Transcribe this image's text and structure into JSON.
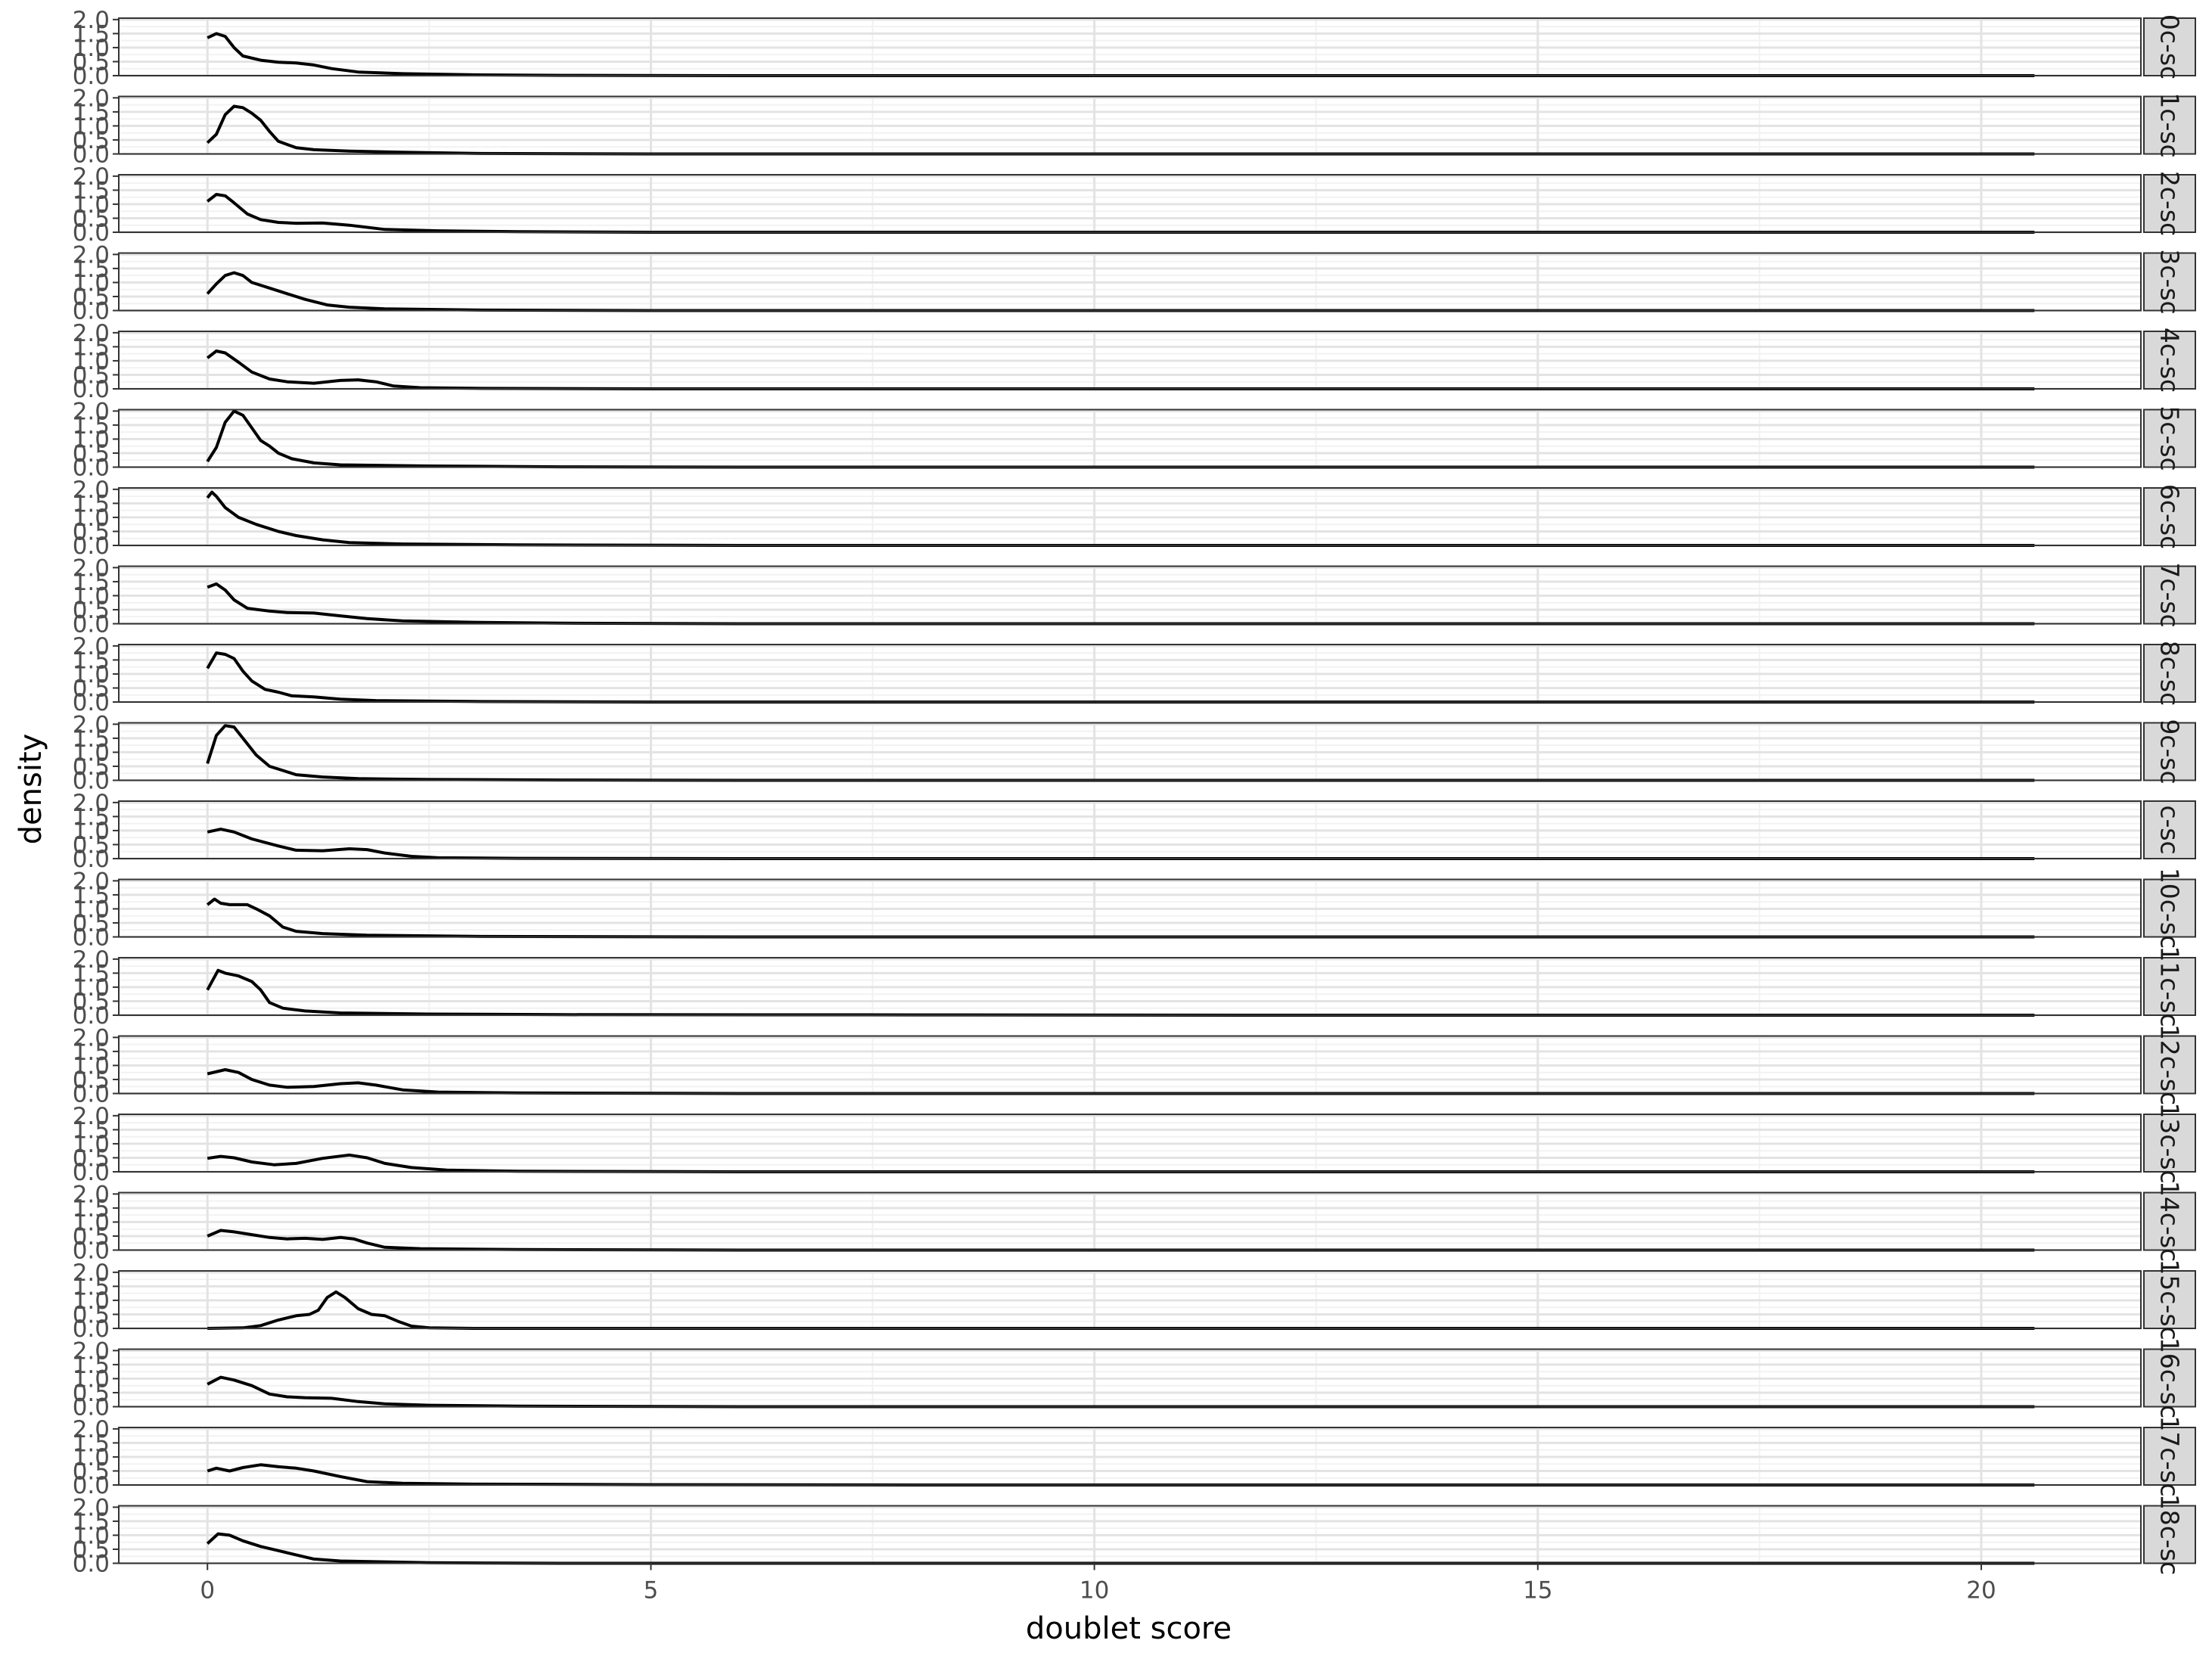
{
  "chart_data": {
    "type": "line",
    "facet": "rows",
    "xlabel": "doublet score",
    "ylabel": "density",
    "xlim": [
      -1,
      21.8
    ],
    "ylim": [
      0,
      2.05
    ],
    "x_ticks": [
      0,
      5,
      10,
      15,
      20
    ],
    "x_tick_labels": [
      "0",
      "5",
      "10",
      "15",
      "20"
    ],
    "y_ticks": [
      0,
      0.5,
      1,
      1.5,
      2
    ],
    "y_tick_labels": [
      "0.0",
      "0.5",
      "1.0",
      "1.5",
      "2.0"
    ],
    "grid": true,
    "legend": "none",
    "line_color": "#000000",
    "strip_color": "#d9d9d9",
    "x_end": 20.6,
    "series": [
      {
        "strip": "0c-sc",
        "points": [
          [
            0,
            1.35
          ],
          [
            0.1,
            1.5
          ],
          [
            0.2,
            1.4
          ],
          [
            0.3,
            1.0
          ],
          [
            0.4,
            0.7
          ],
          [
            0.6,
            0.55
          ],
          [
            0.8,
            0.48
          ],
          [
            1.0,
            0.45
          ],
          [
            1.2,
            0.38
          ],
          [
            1.4,
            0.25
          ],
          [
            1.7,
            0.13
          ],
          [
            2.2,
            0.07
          ],
          [
            3,
            0.03
          ],
          [
            4,
            0.01
          ],
          [
            6,
            0
          ]
        ]
      },
      {
        "strip": "1c-sc",
        "points": [
          [
            0,
            0.4
          ],
          [
            0.1,
            0.7
          ],
          [
            0.2,
            1.4
          ],
          [
            0.3,
            1.7
          ],
          [
            0.4,
            1.65
          ],
          [
            0.5,
            1.45
          ],
          [
            0.6,
            1.2
          ],
          [
            0.7,
            0.8
          ],
          [
            0.8,
            0.45
          ],
          [
            1.0,
            0.22
          ],
          [
            1.2,
            0.15
          ],
          [
            1.6,
            0.1
          ],
          [
            2.2,
            0.06
          ],
          [
            3,
            0.02
          ],
          [
            5,
            0
          ]
        ]
      },
      {
        "strip": "2c-sc",
        "points": [
          [
            0,
            1.1
          ],
          [
            0.1,
            1.35
          ],
          [
            0.2,
            1.3
          ],
          [
            0.3,
            1.05
          ],
          [
            0.45,
            0.65
          ],
          [
            0.6,
            0.45
          ],
          [
            0.8,
            0.35
          ],
          [
            1.0,
            0.32
          ],
          [
            1.3,
            0.33
          ],
          [
            1.6,
            0.25
          ],
          [
            2.0,
            0.1
          ],
          [
            2.6,
            0.05
          ],
          [
            3.5,
            0.02
          ],
          [
            5,
            0
          ]
        ]
      },
      {
        "strip": "3c-sc",
        "points": [
          [
            0,
            0.6
          ],
          [
            0.1,
            0.95
          ],
          [
            0.2,
            1.25
          ],
          [
            0.3,
            1.35
          ],
          [
            0.4,
            1.25
          ],
          [
            0.5,
            1.0
          ],
          [
            0.7,
            0.8
          ],
          [
            0.9,
            0.6
          ],
          [
            1.1,
            0.4
          ],
          [
            1.35,
            0.2
          ],
          [
            1.6,
            0.12
          ],
          [
            2.0,
            0.06
          ],
          [
            3,
            0.02
          ],
          [
            5,
            0
          ]
        ]
      },
      {
        "strip": "4c-sc",
        "points": [
          [
            0,
            1.1
          ],
          [
            0.1,
            1.35
          ],
          [
            0.2,
            1.28
          ],
          [
            0.35,
            0.95
          ],
          [
            0.5,
            0.6
          ],
          [
            0.7,
            0.35
          ],
          [
            0.9,
            0.25
          ],
          [
            1.2,
            0.2
          ],
          [
            1.5,
            0.3
          ],
          [
            1.7,
            0.32
          ],
          [
            1.9,
            0.25
          ],
          [
            2.1,
            0.1
          ],
          [
            2.4,
            0.04
          ],
          [
            3,
            0.02
          ],
          [
            5,
            0
          ]
        ]
      },
      {
        "strip": "5c-sc",
        "points": [
          [
            0,
            0.2
          ],
          [
            0.1,
            0.7
          ],
          [
            0.2,
            1.6
          ],
          [
            0.3,
            2.0
          ],
          [
            0.4,
            1.85
          ],
          [
            0.5,
            1.4
          ],
          [
            0.6,
            0.95
          ],
          [
            0.7,
            0.75
          ],
          [
            0.8,
            0.5
          ],
          [
            0.95,
            0.3
          ],
          [
            1.2,
            0.15
          ],
          [
            1.5,
            0.08
          ],
          [
            2.5,
            0.04
          ],
          [
            4,
            0.01
          ],
          [
            6,
            0
          ]
        ]
      },
      {
        "strip": "6c-sc",
        "points": [
          [
            0,
            1.7
          ],
          [
            0.05,
            1.9
          ],
          [
            0.1,
            1.75
          ],
          [
            0.2,
            1.35
          ],
          [
            0.35,
            1.0
          ],
          [
            0.55,
            0.75
          ],
          [
            0.8,
            0.5
          ],
          [
            1.0,
            0.35
          ],
          [
            1.3,
            0.2
          ],
          [
            1.6,
            0.1
          ],
          [
            2.2,
            0.05
          ],
          [
            3.5,
            0.02
          ],
          [
            6,
            0
          ]
        ]
      },
      {
        "strip": "7c-sc",
        "points": [
          [
            0,
            1.3
          ],
          [
            0.1,
            1.42
          ],
          [
            0.2,
            1.2
          ],
          [
            0.3,
            0.85
          ],
          [
            0.45,
            0.55
          ],
          [
            0.7,
            0.45
          ],
          [
            0.9,
            0.4
          ],
          [
            1.2,
            0.38
          ],
          [
            1.5,
            0.28
          ],
          [
            1.8,
            0.18
          ],
          [
            2.2,
            0.1
          ],
          [
            3,
            0.05
          ],
          [
            4,
            0.02
          ],
          [
            6,
            0
          ]
        ]
      },
      {
        "strip": "8c-sc",
        "points": [
          [
            0,
            1.2
          ],
          [
            0.1,
            1.75
          ],
          [
            0.2,
            1.7
          ],
          [
            0.3,
            1.55
          ],
          [
            0.4,
            1.1
          ],
          [
            0.5,
            0.75
          ],
          [
            0.65,
            0.45
          ],
          [
            0.8,
            0.35
          ],
          [
            0.95,
            0.22
          ],
          [
            1.2,
            0.18
          ],
          [
            1.5,
            0.1
          ],
          [
            1.9,
            0.05
          ],
          [
            3,
            0.02
          ],
          [
            5,
            0
          ]
        ]
      },
      {
        "strip": "9c-sc",
        "points": [
          [
            0,
            0.6
          ],
          [
            0.1,
            1.6
          ],
          [
            0.2,
            1.95
          ],
          [
            0.3,
            1.9
          ],
          [
            0.4,
            1.5
          ],
          [
            0.55,
            0.9
          ],
          [
            0.7,
            0.5
          ],
          [
            0.85,
            0.35
          ],
          [
            1.0,
            0.2
          ],
          [
            1.3,
            0.12
          ],
          [
            1.7,
            0.06
          ],
          [
            2.5,
            0.03
          ],
          [
            4,
            0.01
          ],
          [
            6,
            0
          ]
        ]
      },
      {
        "strip": "c-sc",
        "points": [
          [
            0,
            0.95
          ],
          [
            0.15,
            1.05
          ],
          [
            0.3,
            0.95
          ],
          [
            0.5,
            0.7
          ],
          [
            0.8,
            0.45
          ],
          [
            1.0,
            0.3
          ],
          [
            1.3,
            0.28
          ],
          [
            1.6,
            0.35
          ],
          [
            1.8,
            0.32
          ],
          [
            2.0,
            0.2
          ],
          [
            2.3,
            0.08
          ],
          [
            2.6,
            0.03
          ],
          [
            3.5,
            0.01
          ],
          [
            6,
            0
          ]
        ]
      },
      {
        "strip": "10c-sc",
        "points": [
          [
            0,
            1.15
          ],
          [
            0.08,
            1.35
          ],
          [
            0.15,
            1.2
          ],
          [
            0.25,
            1.15
          ],
          [
            0.45,
            1.15
          ],
          [
            0.55,
            1.0
          ],
          [
            0.7,
            0.75
          ],
          [
            0.85,
            0.35
          ],
          [
            1.0,
            0.2
          ],
          [
            1.3,
            0.12
          ],
          [
            1.8,
            0.06
          ],
          [
            3,
            0.02
          ],
          [
            6,
            0
          ]
        ]
      },
      {
        "strip": "11c-sc",
        "points": [
          [
            0,
            0.9
          ],
          [
            0.12,
            1.6
          ],
          [
            0.2,
            1.5
          ],
          [
            0.35,
            1.4
          ],
          [
            0.5,
            1.2
          ],
          [
            0.6,
            0.9
          ],
          [
            0.7,
            0.45
          ],
          [
            0.85,
            0.25
          ],
          [
            1.1,
            0.15
          ],
          [
            1.5,
            0.08
          ],
          [
            2.5,
            0.04
          ],
          [
            4,
            0.02
          ],
          [
            8,
            0.01
          ],
          [
            12,
            0
          ]
        ]
      },
      {
        "strip": "12c-sc",
        "points": [
          [
            0,
            0.7
          ],
          [
            0.2,
            0.85
          ],
          [
            0.35,
            0.75
          ],
          [
            0.5,
            0.5
          ],
          [
            0.7,
            0.3
          ],
          [
            0.9,
            0.22
          ],
          [
            1.2,
            0.25
          ],
          [
            1.5,
            0.35
          ],
          [
            1.7,
            0.38
          ],
          [
            1.9,
            0.3
          ],
          [
            2.2,
            0.13
          ],
          [
            2.6,
            0.05
          ],
          [
            3.5,
            0.02
          ],
          [
            6,
            0
          ]
        ]
      },
      {
        "strip": "13c-sc",
        "points": [
          [
            0,
            0.48
          ],
          [
            0.15,
            0.55
          ],
          [
            0.3,
            0.5
          ],
          [
            0.5,
            0.35
          ],
          [
            0.75,
            0.25
          ],
          [
            1.0,
            0.3
          ],
          [
            1.3,
            0.48
          ],
          [
            1.6,
            0.6
          ],
          [
            1.8,
            0.5
          ],
          [
            2.0,
            0.3
          ],
          [
            2.3,
            0.15
          ],
          [
            2.7,
            0.06
          ],
          [
            3.5,
            0.02
          ],
          [
            6,
            0
          ]
        ]
      },
      {
        "strip": "14c-sc",
        "points": [
          [
            0,
            0.5
          ],
          [
            0.15,
            0.7
          ],
          [
            0.3,
            0.65
          ],
          [
            0.5,
            0.55
          ],
          [
            0.7,
            0.45
          ],
          [
            0.9,
            0.4
          ],
          [
            1.1,
            0.42
          ],
          [
            1.3,
            0.38
          ],
          [
            1.5,
            0.45
          ],
          [
            1.65,
            0.4
          ],
          [
            1.8,
            0.25
          ],
          [
            2.0,
            0.1
          ],
          [
            2.4,
            0.05
          ],
          [
            3.5,
            0.02
          ],
          [
            6,
            0
          ]
        ]
      },
      {
        "strip": "15c-sc",
        "points": [
          [
            0,
            0
          ],
          [
            0.4,
            0.02
          ],
          [
            0.6,
            0.1
          ],
          [
            0.8,
            0.3
          ],
          [
            1.0,
            0.45
          ],
          [
            1.15,
            0.5
          ],
          [
            1.25,
            0.65
          ],
          [
            1.35,
            1.1
          ],
          [
            1.45,
            1.3
          ],
          [
            1.55,
            1.1
          ],
          [
            1.7,
            0.7
          ],
          [
            1.85,
            0.5
          ],
          [
            2.0,
            0.45
          ],
          [
            2.15,
            0.25
          ],
          [
            2.3,
            0.08
          ],
          [
            2.5,
            0.02
          ],
          [
            3,
            0
          ]
        ]
      },
      {
        "strip": "16c-sc",
        "points": [
          [
            0,
            0.8
          ],
          [
            0.15,
            1.05
          ],
          [
            0.3,
            0.95
          ],
          [
            0.5,
            0.75
          ],
          [
            0.7,
            0.45
          ],
          [
            0.9,
            0.35
          ],
          [
            1.1,
            0.32
          ],
          [
            1.4,
            0.3
          ],
          [
            1.7,
            0.18
          ],
          [
            2.0,
            0.1
          ],
          [
            2.5,
            0.05
          ],
          [
            3.5,
            0.02
          ],
          [
            6,
            0
          ]
        ]
      },
      {
        "strip": "17c-sc",
        "points": [
          [
            0,
            0.5
          ],
          [
            0.1,
            0.6
          ],
          [
            0.25,
            0.5
          ],
          [
            0.4,
            0.62
          ],
          [
            0.6,
            0.72
          ],
          [
            0.8,
            0.65
          ],
          [
            1.0,
            0.6
          ],
          [
            1.2,
            0.5
          ],
          [
            1.5,
            0.3
          ],
          [
            1.8,
            0.12
          ],
          [
            2.2,
            0.06
          ],
          [
            3,
            0.03
          ],
          [
            5,
            0.01
          ],
          [
            8,
            0
          ]
        ]
      },
      {
        "strip": "18c-sc",
        "points": [
          [
            0,
            0.7
          ],
          [
            0.12,
            1.05
          ],
          [
            0.25,
            1.0
          ],
          [
            0.4,
            0.8
          ],
          [
            0.6,
            0.6
          ],
          [
            0.8,
            0.45
          ],
          [
            1.0,
            0.3
          ],
          [
            1.2,
            0.15
          ],
          [
            1.5,
            0.08
          ],
          [
            2.0,
            0.05
          ],
          [
            2.5,
            0.02
          ],
          [
            4,
            0
          ]
        ]
      }
    ]
  }
}
